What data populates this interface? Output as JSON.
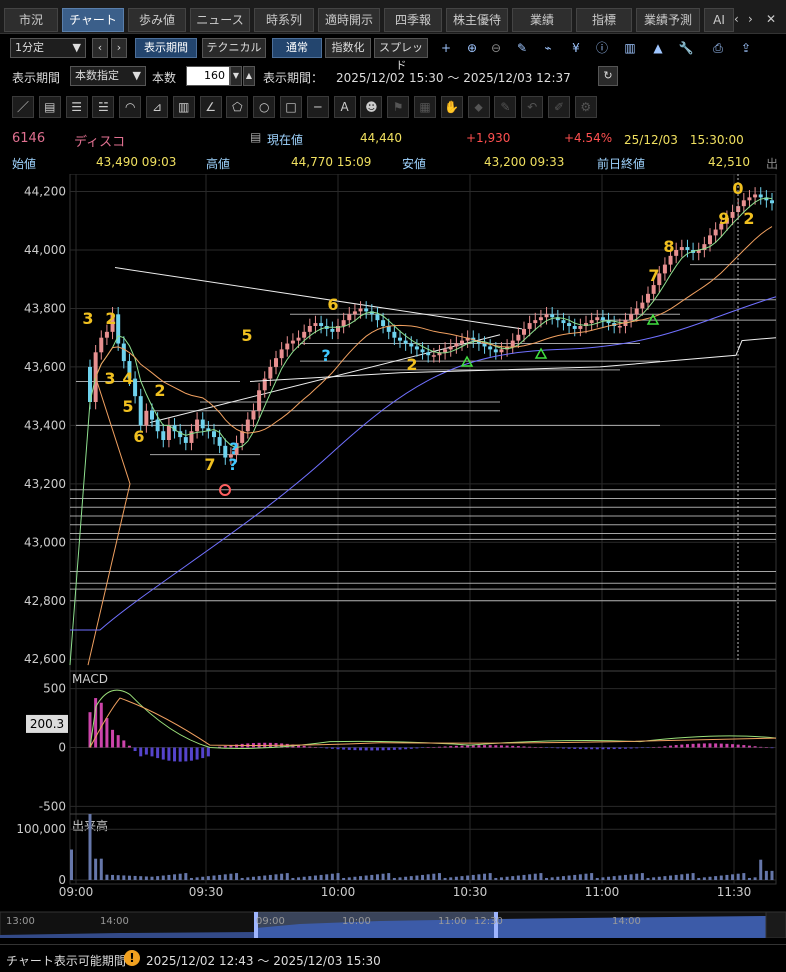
{
  "tabs": [
    {
      "label": "市況",
      "active": false
    },
    {
      "label": "チャート",
      "active": true
    },
    {
      "label": "歩み値",
      "active": false
    },
    {
      "label": "ニュース",
      "active": false
    },
    {
      "label": "時系列",
      "active": false
    },
    {
      "label": "適時開示",
      "active": false
    },
    {
      "label": "四季報",
      "active": false
    },
    {
      "label": "株主優待",
      "active": false
    },
    {
      "label": "業績",
      "active": false
    },
    {
      "label": "指標",
      "active": false
    },
    {
      "label": "業績予測",
      "active": false
    },
    {
      "label": "AI",
      "active": false
    }
  ],
  "tab_ctrl": {
    "prev": "‹",
    "next": "›",
    "close": "✕"
  },
  "toolbar": {
    "interval": "1分定",
    "interval_arrow": "▼",
    "prev": "‹",
    "next": "›",
    "period_btn": "表示期間",
    "technical_btn": "テクニカル",
    "normal_btn": "通常",
    "index_btn": "指数化",
    "spread_btn": "スプレッド",
    "icons": [
      "plus-icon",
      "zoom-in-icon",
      "zoom-out-icon",
      "pencil-icon",
      "tick-icon",
      "yen-icon",
      "info-icon",
      "compare-icon",
      "area-icon",
      "wrench-icon",
      "print-icon",
      "export-icon"
    ]
  },
  "period_bar": {
    "label": "表示期間",
    "mode": "本数指定",
    "count_label": "本数",
    "count": "160",
    "range_label": "表示期間：",
    "range": "2025/12/02 15:30 ～ 2025/12/03 12:37",
    "refresh": "↻"
  },
  "drawing_tools": [
    "／",
    "▤",
    "☰",
    "☱",
    "◠",
    "⊿",
    "▥",
    "∠",
    "⬠",
    "○",
    "□",
    "─",
    "A",
    "☻",
    "⚑",
    "▦",
    "✋",
    "⬥",
    "✎",
    "↶",
    "✐",
    "⚙"
  ],
  "quote": {
    "code": "6146",
    "name": "ディスコ",
    "cur_label": "現在値",
    "current": "44,440",
    "change": "+1,930",
    "pct": "+4.54%",
    "datetime": "25/12/03　15:30:00",
    "open_label": "始値",
    "open": "43,490  09:03",
    "high_label": "高値",
    "high": "44,770  15:09",
    "low_label": "安値",
    "low": "43,200  09:33",
    "prev_label": "前日終値",
    "prev": "42,510",
    "more": "出"
  },
  "colors": {
    "bg": "#000000",
    "grid": "#2a2a2a",
    "up": "#e89090",
    "down": "#6fd3ee",
    "ma_fast": "#8fe08f",
    "ma_mid": "#f0a060",
    "ma_slow": "#7070ff",
    "white_line": "#f0f0f0",
    "macd": "#9be07a",
    "signal": "#f0a060",
    "hist_pos": "#cc44aa",
    "hist_neg": "#5544cc",
    "volume": "#6677aa",
    "accent_yellow": "#f0c020",
    "accent_red": "#ff6060",
    "accent_cyan": "#40c8ff"
  },
  "chart_data": [
    {
      "type": "line",
      "name": "candlestick-1min",
      "xlabel": "",
      "ylabel": "",
      "x_ticks": [
        "09:00",
        "09:30",
        "10:00",
        "10:30",
        "11:00",
        "11:30"
      ],
      "y_ticks": [
        "44,200",
        "44,000",
        "43,800",
        "43,600",
        "43,400",
        "43,200",
        "43,000",
        "42,800",
        "42,600"
      ],
      "ylim": [
        42570,
        44260
      ],
      "candles_open": [
        43600,
        43480,
        43650,
        43700,
        43720,
        43780,
        43680,
        43620,
        43560,
        43500,
        43400,
        43450,
        43420,
        43380,
        43350,
        43400,
        43380,
        43360,
        43340,
        43380,
        43420,
        43390,
        43380,
        43360,
        43330,
        43290,
        43300,
        43340,
        43380,
        43420,
        43450,
        43520,
        43560,
        43600,
        43630,
        43660,
        43680,
        43690,
        43700,
        43720,
        43740,
        43750,
        43740,
        43730,
        43720,
        43740,
        43760,
        43780,
        43790,
        43800,
        43790,
        43780,
        43760,
        43740,
        43720,
        43700,
        43690,
        43680,
        43670,
        43660,
        43650,
        43640,
        43640,
        43650,
        43660,
        43670,
        43680,
        43690,
        43700,
        43690,
        43680,
        43670,
        43660,
        43650,
        43660,
        43670,
        43690,
        43710,
        43730,
        43750,
        43760,
        43770,
        43780,
        43770,
        43760,
        43750,
        43740,
        43730,
        43740,
        43750,
        43760,
        43770,
        43760,
        43750,
        43740,
        43740,
        43760,
        43780,
        43800,
        43820,
        43850,
        43880,
        43920,
        43950,
        43980,
        44000,
        44010,
        44000,
        43990,
        44000,
        44020,
        44050,
        44070,
        44090,
        44110,
        44130,
        44150,
        44170,
        44180,
        44190,
        44180,
        44170
      ],
      "candles_close": [
        43480,
        43650,
        43700,
        43720,
        43780,
        43680,
        43620,
        43560,
        43500,
        43400,
        43450,
        43420,
        43380,
        43350,
        43400,
        43380,
        43360,
        43340,
        43380,
        43420,
        43390,
        43380,
        43360,
        43330,
        43290,
        43300,
        43340,
        43380,
        43420,
        43450,
        43520,
        43560,
        43600,
        43630,
        43660,
        43680,
        43690,
        43700,
        43720,
        43740,
        43750,
        43740,
        43730,
        43720,
        43740,
        43760,
        43780,
        43790,
        43800,
        43790,
        43780,
        43760,
        43740,
        43720,
        43700,
        43690,
        43680,
        43670,
        43660,
        43650,
        43640,
        43640,
        43650,
        43660,
        43670,
        43680,
        43690,
        43700,
        43690,
        43680,
        43670,
        43660,
        43650,
        43660,
        43670,
        43690,
        43710,
        43730,
        43750,
        43760,
        43770,
        43780,
        43770,
        43760,
        43750,
        43740,
        43730,
        43740,
        43750,
        43760,
        43770,
        43760,
        43750,
        43740,
        43740,
        43760,
        43780,
        43800,
        43820,
        43850,
        43880,
        43920,
        43950,
        43980,
        44000,
        44010,
        44000,
        43990,
        44000,
        44020,
        44050,
        44070,
        44090,
        44110,
        44130,
        44150,
        44170,
        44180,
        44190,
        44180,
        44170,
        44160
      ],
      "series": [
        {
          "name": "",
          "values": []
        }
      ],
      "markers": [
        "3",
        "2",
        "3",
        "4",
        "5",
        "2",
        "6",
        "7",
        "?",
        "?",
        "5",
        "?",
        "6",
        "2",
        "7",
        "8",
        "9",
        "0",
        "2"
      ]
    },
    {
      "type": "line",
      "name": "MACD",
      "title": "MACD",
      "y_ticks": [
        "500",
        "0",
        "-500"
      ],
      "ylim": [
        -650,
        650
      ],
      "label_value": "200.3"
    },
    {
      "type": "bar",
      "name": "volume",
      "title": "出来高",
      "y_ticks": [
        "100,000",
        "0"
      ],
      "ylim": [
        0,
        130000
      ]
    }
  ],
  "timeline": {
    "ticks": [
      "13:00",
      "14:00",
      "09:00",
      "10:00",
      "11:00",
      "12:30",
      "14:00"
    ],
    "range_label": "チャート表示可能期間",
    "range": "2025/12/02 12:43 ～ 2025/12/03 15:30"
  }
}
